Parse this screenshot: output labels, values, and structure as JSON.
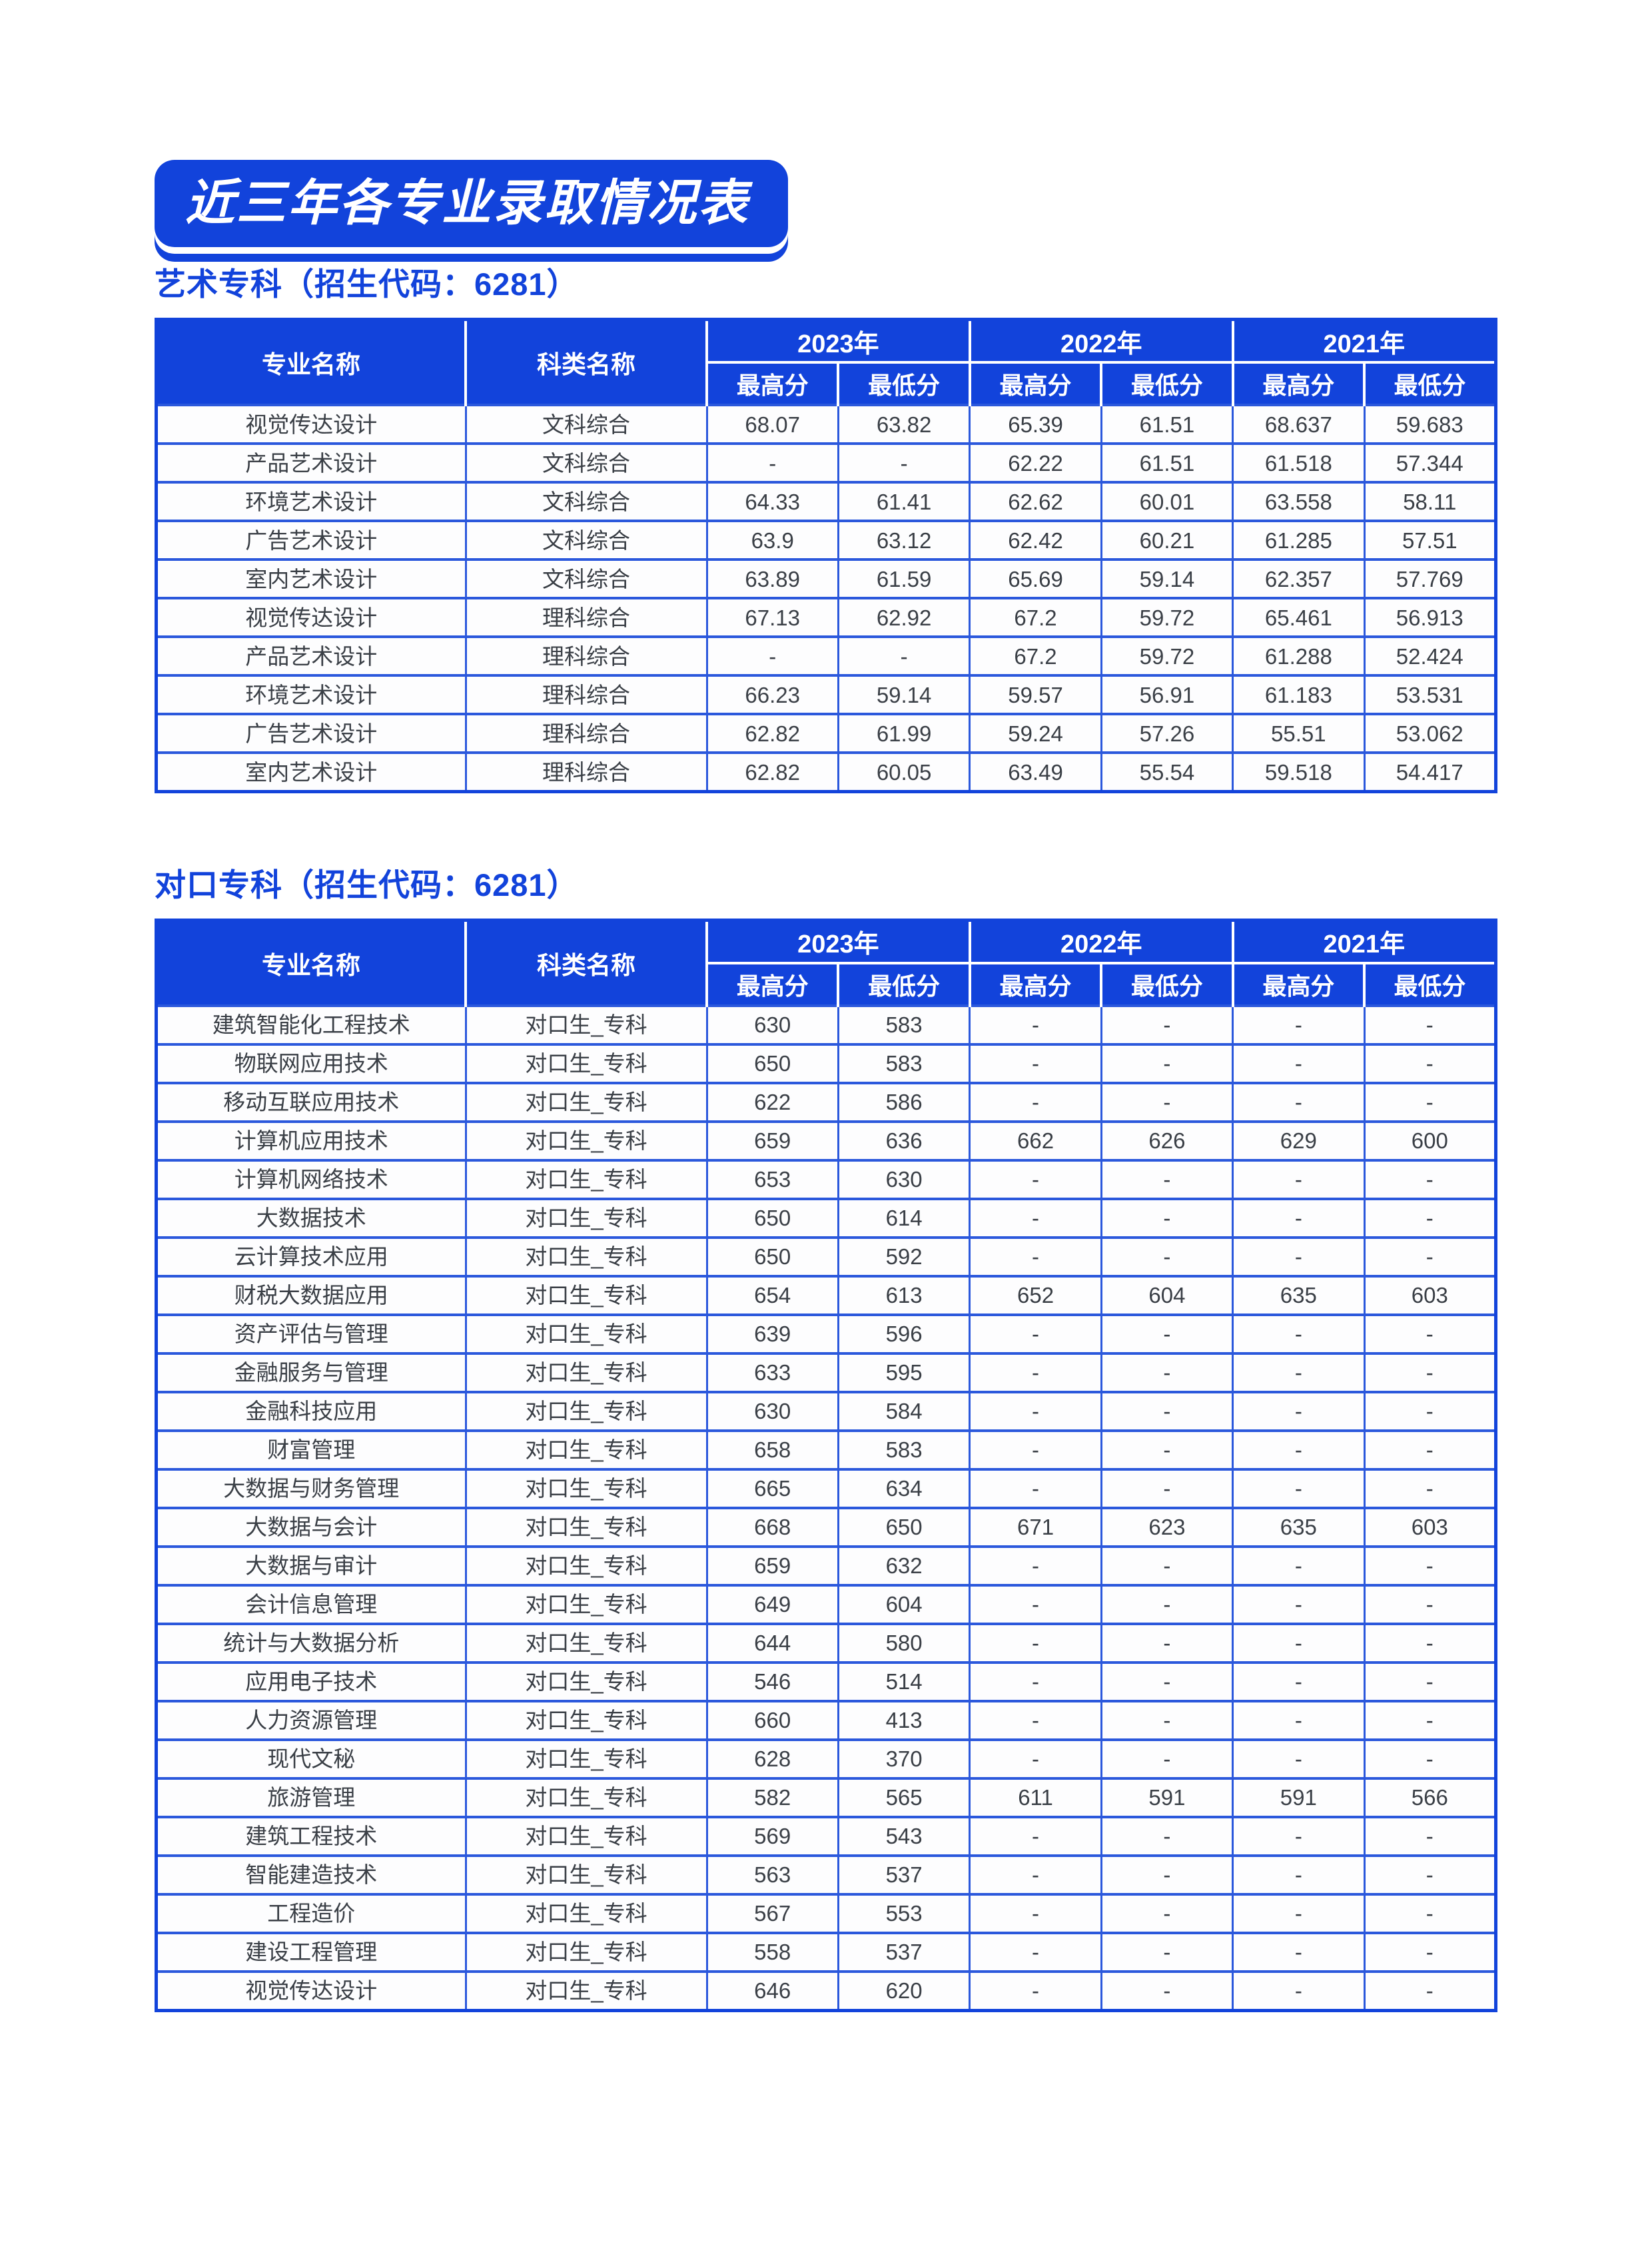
{
  "banner": {
    "title": "近三年各专业录取情况表"
  },
  "colors": {
    "primary_blue": "#1243db"
  },
  "sections": [
    {
      "heading": "艺术专科（招生代码：6281）",
      "table": {
        "headers": {
          "major": "专业名称",
          "category": "科类名称",
          "years": [
            "2023年",
            "2022年",
            "2021年"
          ],
          "max": "最高分",
          "min": "最低分"
        },
        "rows": [
          {
            "major": "视觉传达设计",
            "category": "文科综合",
            "scores": [
              "68.07",
              "63.82",
              "65.39",
              "61.51",
              "68.637",
              "59.683"
            ]
          },
          {
            "major": "产品艺术设计",
            "category": "文科综合",
            "scores": [
              "-",
              "-",
              "62.22",
              "61.51",
              "61.518",
              "57.344"
            ]
          },
          {
            "major": "环境艺术设计",
            "category": "文科综合",
            "scores": [
              "64.33",
              "61.41",
              "62.62",
              "60.01",
              "63.558",
              "58.11"
            ]
          },
          {
            "major": "广告艺术设计",
            "category": "文科综合",
            "scores": [
              "63.9",
              "63.12",
              "62.42",
              "60.21",
              "61.285",
              "57.51"
            ]
          },
          {
            "major": "室内艺术设计",
            "category": "文科综合",
            "scores": [
              "63.89",
              "61.59",
              "65.69",
              "59.14",
              "62.357",
              "57.769"
            ]
          },
          {
            "major": "视觉传达设计",
            "category": "理科综合",
            "scores": [
              "67.13",
              "62.92",
              "67.2",
              "59.72",
              "65.461",
              "56.913"
            ]
          },
          {
            "major": "产品艺术设计",
            "category": "理科综合",
            "scores": [
              "-",
              "-",
              "67.2",
              "59.72",
              "61.288",
              "52.424"
            ]
          },
          {
            "major": "环境艺术设计",
            "category": "理科综合",
            "scores": [
              "66.23",
              "59.14",
              "59.57",
              "56.91",
              "61.183",
              "53.531"
            ]
          },
          {
            "major": "广告艺术设计",
            "category": "理科综合",
            "scores": [
              "62.82",
              "61.99",
              "59.24",
              "57.26",
              "55.51",
              "53.062"
            ]
          },
          {
            "major": "室内艺术设计",
            "category": "理科综合",
            "scores": [
              "62.82",
              "60.05",
              "63.49",
              "55.54",
              "59.518",
              "54.417"
            ]
          }
        ]
      }
    },
    {
      "heading": "对口专科（招生代码：6281）",
      "table": {
        "headers": {
          "major": "专业名称",
          "category": "科类名称",
          "years": [
            "2023年",
            "2022年",
            "2021年"
          ],
          "max": "最高分",
          "min": "最低分"
        },
        "rows": [
          {
            "major": "建筑智能化工程技术",
            "category": "对口生_专科",
            "scores": [
              "630",
              "583",
              "-",
              "-",
              "-",
              "-"
            ]
          },
          {
            "major": "物联网应用技术",
            "category": "对口生_专科",
            "scores": [
              "650",
              "583",
              "-",
              "-",
              "-",
              "-"
            ]
          },
          {
            "major": "移动互联应用技术",
            "category": "对口生_专科",
            "scores": [
              "622",
              "586",
              "-",
              "-",
              "-",
              "-"
            ]
          },
          {
            "major": "计算机应用技术",
            "category": "对口生_专科",
            "scores": [
              "659",
              "636",
              "662",
              "626",
              "629",
              "600"
            ]
          },
          {
            "major": "计算机网络技术",
            "category": "对口生_专科",
            "scores": [
              "653",
              "630",
              "-",
              "-",
              "-",
              "-"
            ]
          },
          {
            "major": "大数据技术",
            "category": "对口生_专科",
            "scores": [
              "650",
              "614",
              "-",
              "-",
              "-",
              "-"
            ]
          },
          {
            "major": "云计算技术应用",
            "category": "对口生_专科",
            "scores": [
              "650",
              "592",
              "-",
              "-",
              "-",
              "-"
            ]
          },
          {
            "major": "财税大数据应用",
            "category": "对口生_专科",
            "scores": [
              "654",
              "613",
              "652",
              "604",
              "635",
              "603"
            ]
          },
          {
            "major": "资产评估与管理",
            "category": "对口生_专科",
            "scores": [
              "639",
              "596",
              "-",
              "-",
              "-",
              "-"
            ]
          },
          {
            "major": "金融服务与管理",
            "category": "对口生_专科",
            "scores": [
              "633",
              "595",
              "-",
              "-",
              "-",
              "-"
            ]
          },
          {
            "major": "金融科技应用",
            "category": "对口生_专科",
            "scores": [
              "630",
              "584",
              "-",
              "-",
              "-",
              "-"
            ]
          },
          {
            "major": "财富管理",
            "category": "对口生_专科",
            "scores": [
              "658",
              "583",
              "-",
              "-",
              "-",
              "-"
            ]
          },
          {
            "major": "大数据与财务管理",
            "category": "对口生_专科",
            "scores": [
              "665",
              "634",
              "-",
              "-",
              "-",
              "-"
            ]
          },
          {
            "major": "大数据与会计",
            "category": "对口生_专科",
            "scores": [
              "668",
              "650",
              "671",
              "623",
              "635",
              "603"
            ]
          },
          {
            "major": "大数据与审计",
            "category": "对口生_专科",
            "scores": [
              "659",
              "632",
              "-",
              "-",
              "-",
              "-"
            ]
          },
          {
            "major": "会计信息管理",
            "category": "对口生_专科",
            "scores": [
              "649",
              "604",
              "-",
              "-",
              "-",
              "-"
            ]
          },
          {
            "major": "统计与大数据分析",
            "category": "对口生_专科",
            "scores": [
              "644",
              "580",
              "-",
              "-",
              "-",
              "-"
            ]
          },
          {
            "major": "应用电子技术",
            "category": "对口生_专科",
            "scores": [
              "546",
              "514",
              "-",
              "-",
              "-",
              "-"
            ]
          },
          {
            "major": "人力资源管理",
            "category": "对口生_专科",
            "scores": [
              "660",
              "413",
              "-",
              "-",
              "-",
              "-"
            ]
          },
          {
            "major": "现代文秘",
            "category": "对口生_专科",
            "scores": [
              "628",
              "370",
              "-",
              "-",
              "-",
              "-"
            ]
          },
          {
            "major": "旅游管理",
            "category": "对口生_专科",
            "scores": [
              "582",
              "565",
              "611",
              "591",
              "591",
              "566"
            ]
          },
          {
            "major": "建筑工程技术",
            "category": "对口生_专科",
            "scores": [
              "569",
              "543",
              "-",
              "-",
              "-",
              "-"
            ]
          },
          {
            "major": "智能建造技术",
            "category": "对口生_专科",
            "scores": [
              "563",
              "537",
              "-",
              "-",
              "-",
              "-"
            ]
          },
          {
            "major": "工程造价",
            "category": "对口生_专科",
            "scores": [
              "567",
              "553",
              "-",
              "-",
              "-",
              "-"
            ]
          },
          {
            "major": "建设工程管理",
            "category": "对口生_专科",
            "scores": [
              "558",
              "537",
              "-",
              "-",
              "-",
              "-"
            ]
          },
          {
            "major": "视觉传达设计",
            "category": "对口生_专科",
            "scores": [
              "646",
              "620",
              "-",
              "-",
              "-",
              "-"
            ]
          }
        ]
      }
    }
  ]
}
